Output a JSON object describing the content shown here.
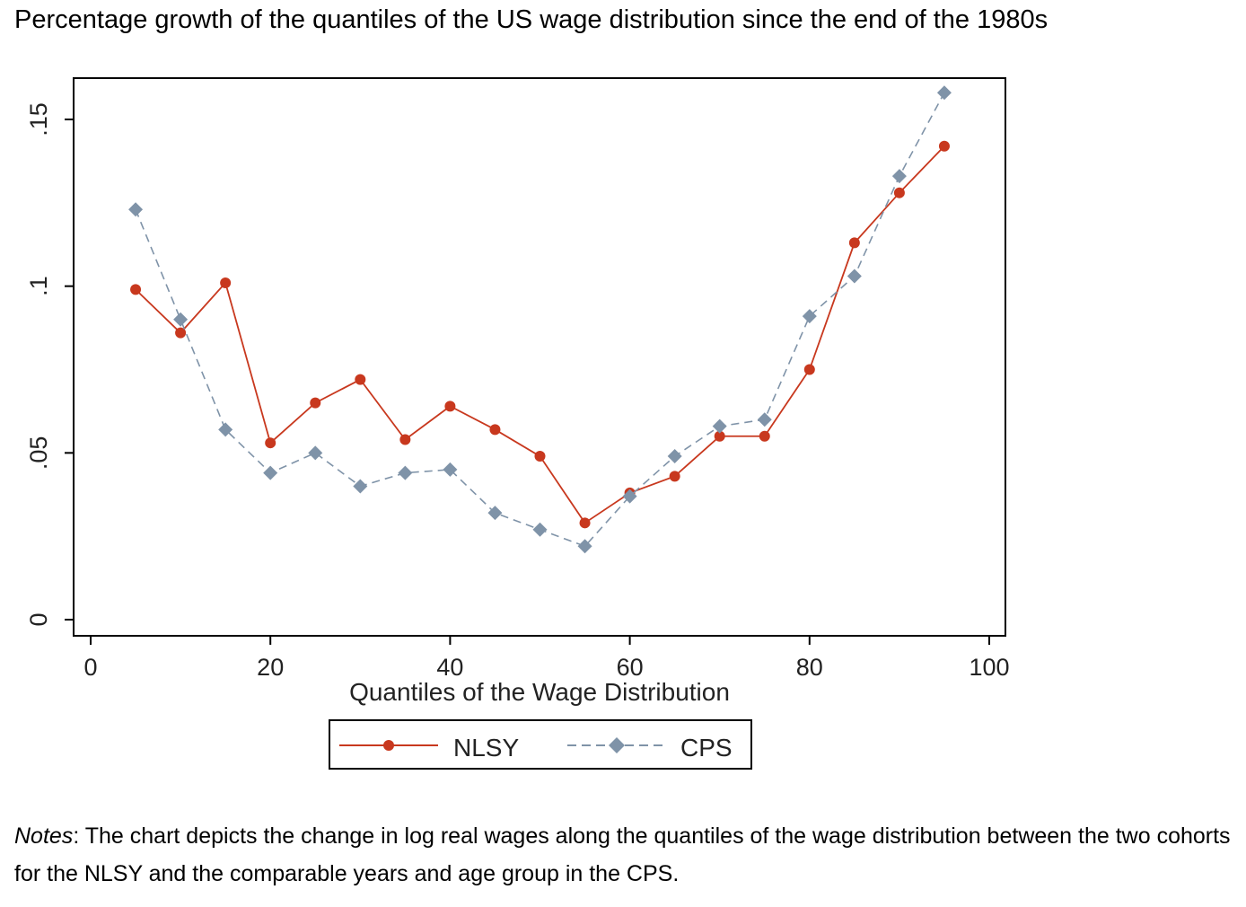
{
  "page": {
    "title": "Percentage growth of the quantiles of the US wage distribution since the end of the 1980s",
    "notes_label": "Notes",
    "notes_text": ": The chart depicts the change in log real wages along the quantiles of the wage distribution between the two cohorts for the NLSY and the comparable years and age group in the CPS."
  },
  "chart_data": {
    "type": "line",
    "title": "",
    "xlabel": "Quantiles of the Wage Distribution",
    "ylabel": "",
    "xlim": [
      0,
      100
    ],
    "ylim": [
      0,
      0.15
    ],
    "x_ticks": [
      0,
      20,
      40,
      60,
      80,
      100
    ],
    "x_tick_labels": [
      "0",
      "20",
      "40",
      "60",
      "80",
      "100"
    ],
    "y_ticks": [
      0,
      0.05,
      0.1,
      0.15
    ],
    "y_tick_labels": [
      "0",
      ".05",
      ".1",
      ".15"
    ],
    "grid": false,
    "legend_position": "bottom",
    "x": [
      5,
      10,
      15,
      20,
      25,
      30,
      35,
      40,
      45,
      50,
      55,
      60,
      65,
      70,
      75,
      80,
      85,
      90,
      95
    ],
    "series": [
      {
        "name": "NLSY",
        "color": "#c8381e",
        "line_style": "solid",
        "marker": "circle",
        "values": [
          0.099,
          0.086,
          0.101,
          0.053,
          0.065,
          0.072,
          0.054,
          0.064,
          0.057,
          0.049,
          0.029,
          0.038,
          0.043,
          0.055,
          0.055,
          0.075,
          0.113,
          0.128,
          0.142
        ]
      },
      {
        "name": "CPS",
        "color": "#7f93a8",
        "line_style": "dashed",
        "marker": "diamond",
        "values": [
          0.123,
          0.09,
          0.057,
          0.044,
          0.05,
          0.04,
          0.044,
          0.045,
          0.032,
          0.027,
          0.022,
          0.037,
          0.049,
          0.058,
          0.06,
          0.091,
          0.103,
          0.133,
          0.158
        ]
      }
    ]
  }
}
